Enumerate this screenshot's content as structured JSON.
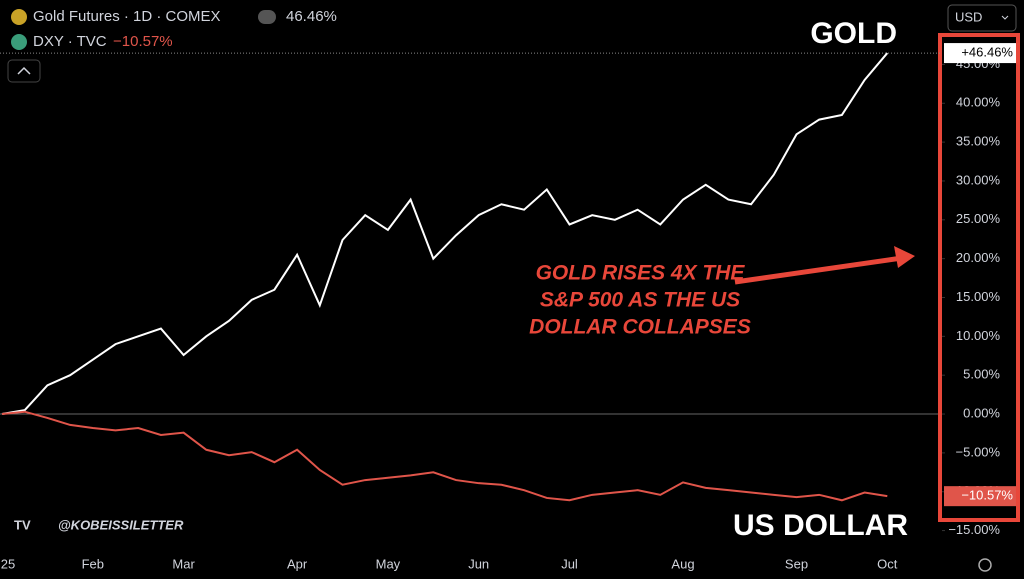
{
  "chart_data": {
    "type": "line",
    "legend_title": "USD",
    "handle": "@KOBEISSILETTER",
    "annotation_lines": [
      "GOLD RISES 4X THE",
      "S&P 500 AS THE US",
      "DOLLAR COLLAPSES"
    ],
    "categories": [
      "25",
      null,
      null,
      null,
      "Feb",
      null,
      null,
      null,
      "Mar",
      null,
      null,
      null,
      null,
      "Apr",
      null,
      null,
      null,
      "May",
      null,
      null,
      null,
      "Jun",
      null,
      null,
      null,
      "Jul",
      null,
      null,
      null,
      null,
      "Aug",
      null,
      null,
      null,
      null,
      "Sep",
      null,
      null,
      null,
      "Oct"
    ],
    "ylim": [
      -17.5,
      47.5
    ],
    "yticks": [
      {
        "value": 45,
        "label": "45.00%"
      },
      {
        "value": 40,
        "label": "40.00%"
      },
      {
        "value": 35,
        "label": "35.00%"
      },
      {
        "value": 30,
        "label": "30.00%"
      },
      {
        "value": 25,
        "label": "25.00%"
      },
      {
        "value": 20,
        "label": "20.00%"
      },
      {
        "value": 15,
        "label": "15.00%"
      },
      {
        "value": 10,
        "label": "10.00%"
      },
      {
        "value": 5,
        "label": "5.00%"
      },
      {
        "value": 0,
        "label": "0.00%"
      },
      {
        "value": -5,
        "label": "−5.00%"
      },
      {
        "value": -10,
        "label": "−10.00%"
      },
      {
        "value": -15,
        "label": "−15.00%"
      }
    ],
    "series": [
      {
        "name": "Gold Futures · 1D · COMEX",
        "legend_value": "46.46%",
        "last_label": "+46.46%",
        "big_label": "GOLD",
        "color": "#ffffff",
        "values": [
          0,
          0.5,
          3.7,
          5,
          7,
          9,
          10,
          11,
          7.6,
          10,
          12,
          14.7,
          16,
          20.5,
          14,
          22.4,
          25.6,
          23.7,
          27.6,
          20,
          23,
          25.6,
          27,
          26.3,
          28.9,
          24.4,
          25.6,
          25,
          26.3,
          24.4,
          27.6,
          29.5,
          27.6,
          27,
          30.8,
          36,
          37.9,
          38.5,
          43,
          46.46
        ]
      },
      {
        "name": "DXY · TVC",
        "legend_value": "−10.57%",
        "last_label": "−10.57%",
        "big_label": "US DOLLAR",
        "color": "#e0554a",
        "values": [
          0,
          0.3,
          -0.5,
          -1.4,
          -1.8,
          -2.1,
          -1.8,
          -2.7,
          -2.4,
          -4.6,
          -5.3,
          -4.9,
          -6.2,
          -4.6,
          -7.2,
          -9.1,
          -8.5,
          -8.2,
          -7.9,
          -7.5,
          -8.5,
          -8.9,
          -9.1,
          -9.8,
          -10.8,
          -11.1,
          -10.4,
          -10.1,
          -9.8,
          -10.4,
          -8.8,
          -9.5,
          -9.8,
          -10.1,
          -10.4,
          -10.7,
          -10.4,
          -11.1,
          -10.1,
          -10.57
        ]
      }
    ]
  }
}
